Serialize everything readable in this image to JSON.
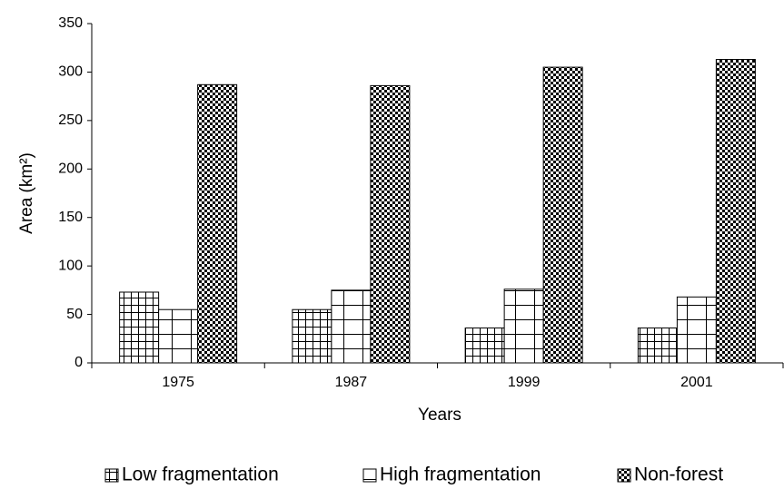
{
  "chart_data": {
    "type": "bar",
    "xlabel": "Years",
    "ylabel": "Area (km²)",
    "categories": [
      "1975",
      "1987",
      "1999",
      "2001"
    ],
    "series": [
      {
        "name": "Low fragmentation",
        "color": "#000000",
        "pattern": "grid",
        "values": [
          73,
          55,
          36,
          36
        ]
      },
      {
        "name": "High fragmentation",
        "color": "#000000",
        "pattern": "bricks",
        "values": [
          55,
          75,
          76,
          68
        ]
      },
      {
        "name": "Non-forest",
        "color": "#000000",
        "pattern": "checker",
        "values": [
          287,
          286,
          305,
          313
        ]
      }
    ],
    "ylim": [
      0,
      350
    ],
    "yticks": [
      0,
      50,
      100,
      150,
      200,
      250,
      300,
      350
    ],
    "grid": false,
    "legend": "bottom"
  }
}
